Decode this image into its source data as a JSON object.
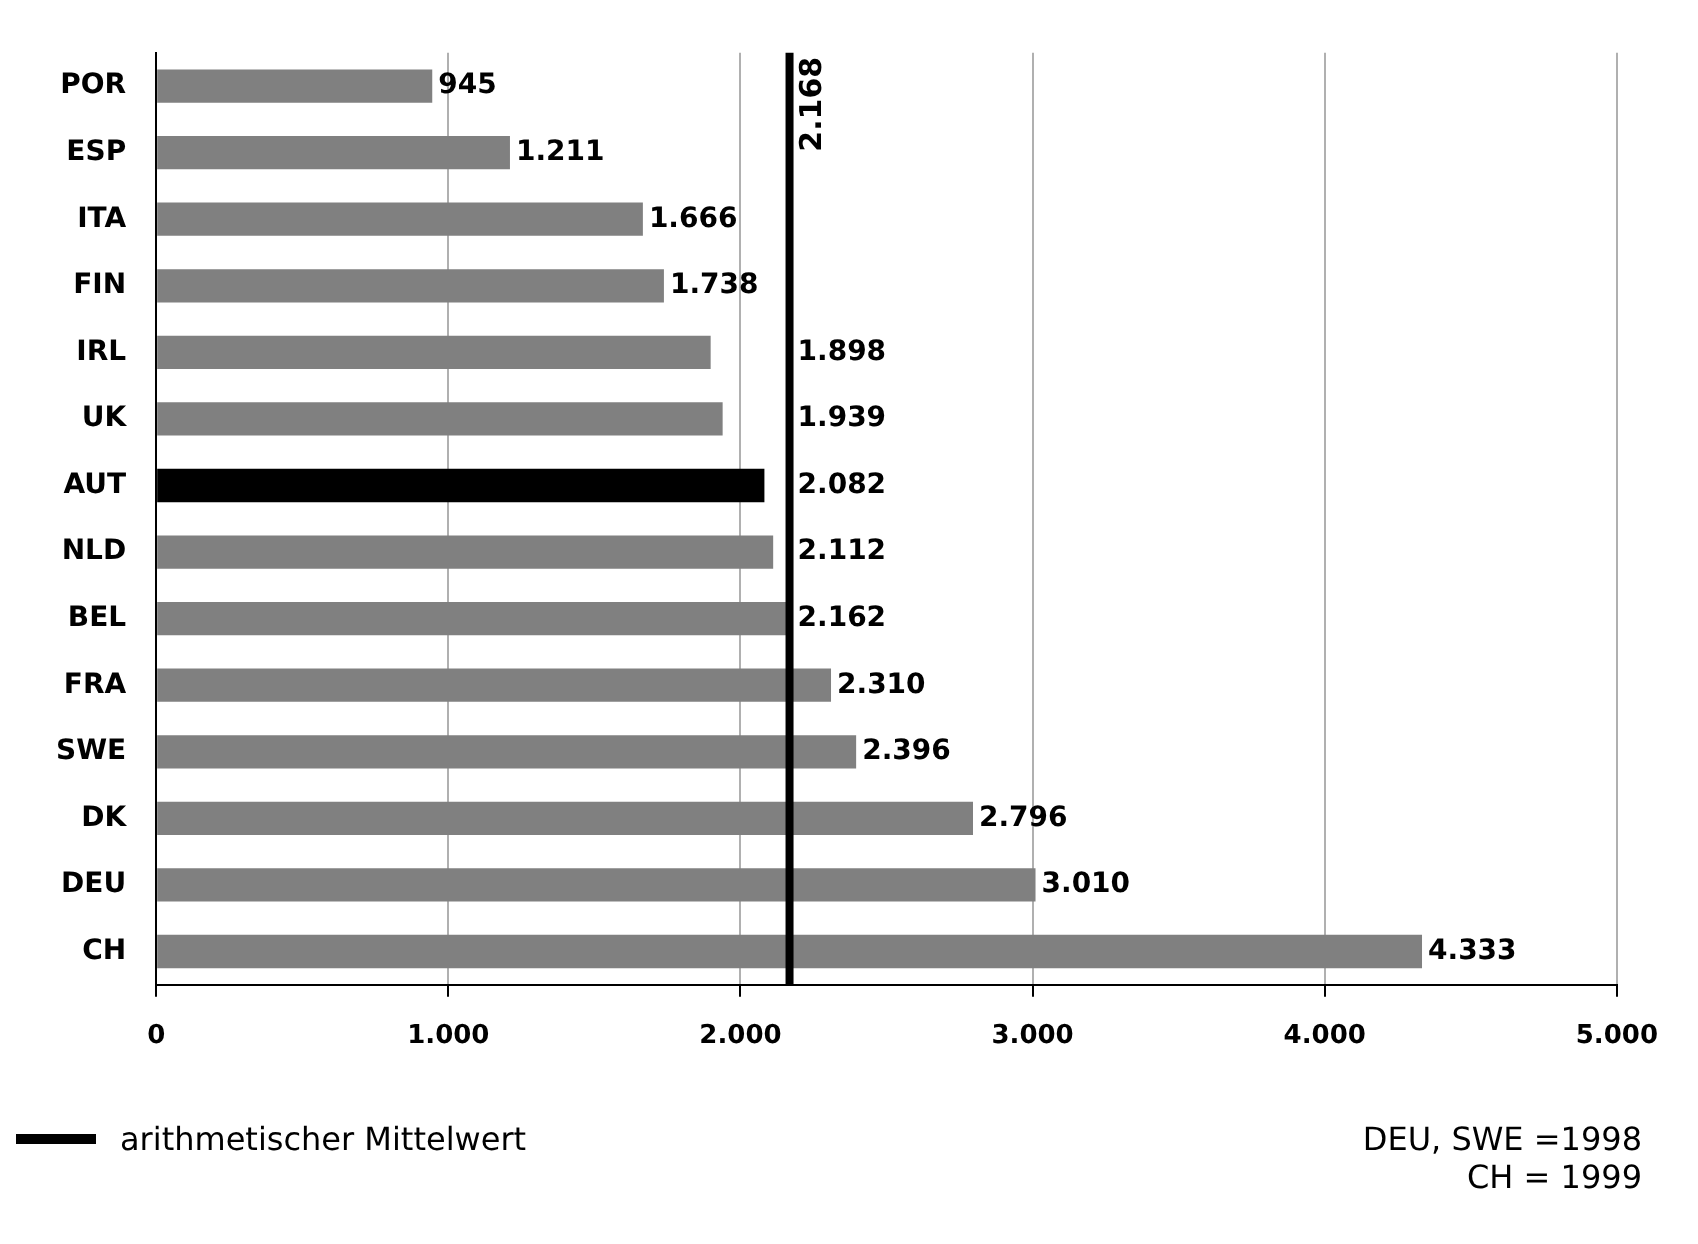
{
  "chart_data": {
    "type": "bar",
    "orientation": "horizontal",
    "categories": [
      "POR",
      "ESP",
      "ITA",
      "FIN",
      "IRL",
      "UK",
      "AUT",
      "NLD",
      "BEL",
      "FRA",
      "SWE",
      "DK",
      "DEU",
      "CH"
    ],
    "values": [
      945,
      1211,
      1666,
      1738,
      1898,
      1939,
      2082,
      2112,
      2162,
      2310,
      2396,
      2796,
      3010,
      4333
    ],
    "colors": [
      "#808080",
      "#808080",
      "#808080",
      "#808080",
      "#808080",
      "#808080",
      "#000000",
      "#808080",
      "#808080",
      "#808080",
      "#808080",
      "#808080",
      "#808080",
      "#808080"
    ],
    "value_labels": [
      "945",
      "1.211",
      "1.666",
      "1.738",
      "1.898",
      "1.939",
      "2.082",
      "2.112",
      "2.162",
      "2.310",
      "2.396",
      "2.796",
      "3.010",
      "4.333"
    ],
    "xlim": [
      0,
      5000
    ],
    "xticks": [
      0,
      {
        "value": 1000,
        "label": "1.000"
      },
      {
        "value": 2000,
        "label": "2.000"
      },
      {
        "value": 3000,
        "label": "3.000"
      },
      {
        "value": 4000,
        "label": "4.000"
      },
      {
        "value": 5000,
        "label": "5.000"
      }
    ],
    "grid": "x",
    "ref_lines": [
      {
        "axis": "x",
        "value": 2168,
        "label": "2.168",
        "color": "#000000"
      }
    ],
    "legend_title": "arithmetischer Mittelwert",
    "annotations": [
      "DEU, SWE =1998",
      "CH = 1999"
    ]
  }
}
